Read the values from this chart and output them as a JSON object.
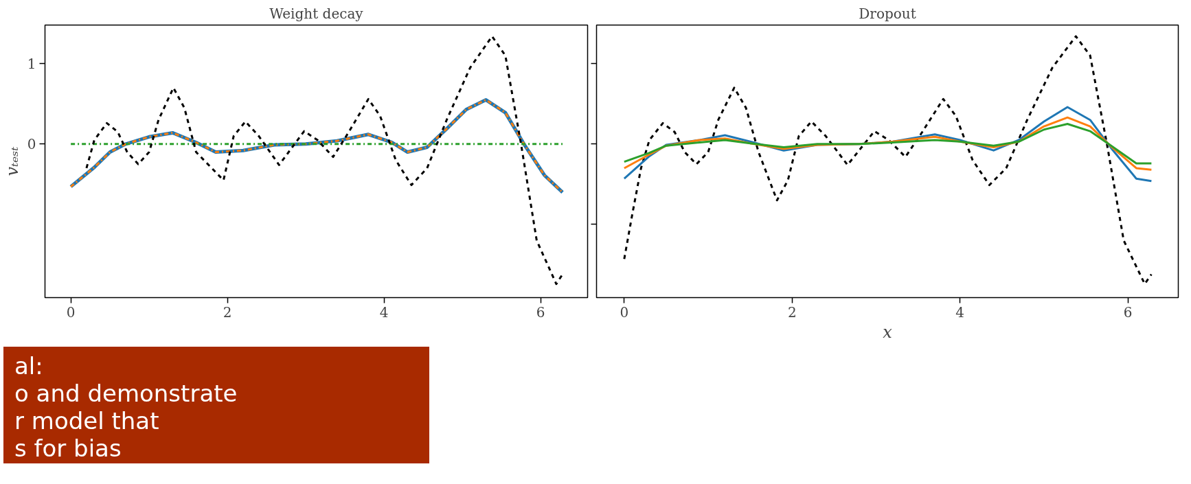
{
  "chart_data": [
    {
      "type": "line",
      "title": "Weight decay",
      "ylabel": "vₜₑₛₜ",
      "xlim": [
        -0.33,
        6.6
      ],
      "ylim": [
        -1.91,
        1.48
      ],
      "xticks": [
        0,
        2,
        4,
        6
      ],
      "yticks": [
        0,
        1
      ],
      "grid": false,
      "series": [
        {
          "color": "#1f77b4",
          "line_style": "solid",
          "x": [
            0,
            0.3,
            0.5,
            0.7,
            1.0,
            1.3,
            1.6,
            1.85,
            2.2,
            2.6,
            3.0,
            3.4,
            3.8,
            4.1,
            4.3,
            4.55,
            4.8,
            5.05,
            5.3,
            5.55,
            5.8,
            6.05,
            6.28
          ],
          "values": [
            -0.53,
            -0.29,
            -0.1,
            0,
            0.09,
            0.14,
            0.02,
            -0.1,
            -0.08,
            -0.01,
            0,
            0.04,
            0.12,
            0.02,
            -0.1,
            -0.04,
            0.19,
            0.43,
            0.55,
            0.39,
            -0.02,
            -0.39,
            -0.6
          ]
        },
        {
          "color": "#ff7f0e",
          "line_style": "dashdot",
          "x": [
            0,
            0.3,
            0.5,
            0.7,
            1.0,
            1.3,
            1.6,
            1.85,
            2.2,
            2.6,
            3.0,
            3.4,
            3.8,
            4.1,
            4.3,
            4.55,
            4.8,
            5.05,
            5.3,
            5.55,
            5.8,
            6.05,
            6.28
          ],
          "values": [
            -0.53,
            -0.29,
            -0.1,
            0,
            0.09,
            0.14,
            0.02,
            -0.1,
            -0.08,
            -0.01,
            0,
            0.04,
            0.12,
            0.02,
            -0.1,
            -0.04,
            0.19,
            0.43,
            0.55,
            0.39,
            -0.02,
            -0.39,
            -0.6
          ]
        },
        {
          "color": "#2ca02c",
          "line_style": "dashdot",
          "x": [
            0,
            6.28
          ],
          "values": [
            0,
            0
          ]
        },
        {
          "color": "#000000",
          "line_style": "dashed",
          "x": [
            0.2,
            0.3,
            0.46,
            0.6,
            0.72,
            0.86,
            1.0,
            1.12,
            1.31,
            1.45,
            1.6,
            1.95,
            2.08,
            2.23,
            2.4,
            2.66,
            2.82,
            2.98,
            3.15,
            3.35,
            3.55,
            3.8,
            3.95,
            4.15,
            4.35,
            4.55,
            4.8,
            5.1,
            5.38,
            5.55,
            5.75,
            5.95,
            6.2,
            6.28
          ],
          "values": [
            -0.3,
            0.05,
            0.26,
            0.15,
            -0.1,
            -0.25,
            -0.1,
            0.3,
            0.7,
            0.45,
            -0.1,
            -0.45,
            0.1,
            0.28,
            0.1,
            -0.26,
            -0.05,
            0.16,
            0.05,
            -0.16,
            0.15,
            0.56,
            0.35,
            -0.2,
            -0.51,
            -0.3,
            0.3,
            0.95,
            1.34,
            1.1,
            0.0,
            -1.2,
            -1.74,
            -1.62
          ]
        }
      ]
    },
    {
      "type": "line",
      "title": "Dropout",
      "xlabel": "x",
      "xlim": [
        -0.33,
        6.6
      ],
      "ylim": [
        -1.91,
        1.48
      ],
      "xticks": [
        0,
        2,
        4,
        6
      ],
      "yticks": [
        -1,
        0,
        1
      ],
      "tick_labels": "x",
      "grid": false,
      "series": [
        {
          "color": "#000000",
          "line_style": "dashed",
          "x": [
            0,
            0.1,
            0.2,
            0.3,
            0.46,
            0.6,
            0.72,
            0.86,
            1.0,
            1.12,
            1.31,
            1.45,
            1.6,
            1.82,
            1.95,
            2.08,
            2.23,
            2.4,
            2.66,
            2.82,
            2.98,
            3.15,
            3.35,
            3.55,
            3.8,
            3.95,
            4.15,
            4.35,
            4.55,
            4.8,
            5.1,
            5.38,
            5.55,
            5.75,
            5.95,
            6.2,
            6.28
          ],
          "values": [
            -1.43,
            -0.85,
            -0.3,
            0.05,
            0.26,
            0.15,
            -0.1,
            -0.25,
            -0.1,
            0.3,
            0.7,
            0.45,
            -0.1,
            -0.7,
            -0.45,
            0.1,
            0.28,
            0.1,
            -0.26,
            -0.05,
            0.16,
            0.05,
            -0.16,
            0.15,
            0.56,
            0.35,
            -0.2,
            -0.51,
            -0.3,
            0.3,
            0.95,
            1.34,
            1.1,
            0.0,
            -1.2,
            -1.74,
            -1.62
          ]
        },
        {
          "color": "#1f77b4",
          "line_style": "solid",
          "x": [
            0,
            0.3,
            0.5,
            0.9,
            1.2,
            1.5,
            1.9,
            2.3,
            2.8,
            3.2,
            3.7,
            4.0,
            4.4,
            4.7,
            5.0,
            5.28,
            5.55,
            5.8,
            6.1,
            6.28
          ],
          "values": [
            -0.43,
            -0.15,
            -0.01,
            0.05,
            0.11,
            0.03,
            -0.08,
            -0.01,
            0,
            0.03,
            0.12,
            0.05,
            -0.08,
            0.05,
            0.28,
            0.46,
            0.3,
            -0.05,
            -0.43,
            -0.46
          ]
        },
        {
          "color": "#ff7f0e",
          "line_style": "solid",
          "x": [
            0,
            0.3,
            0.5,
            0.9,
            1.2,
            1.5,
            1.9,
            2.3,
            2.8,
            3.2,
            3.7,
            4.0,
            4.4,
            4.7,
            5.0,
            5.28,
            5.55,
            5.8,
            6.1,
            6.28
          ],
          "values": [
            -0.3,
            -0.13,
            -0.02,
            0.05,
            0.07,
            0.01,
            -0.06,
            -0.01,
            0,
            0.03,
            0.09,
            0.03,
            -0.04,
            0.03,
            0.22,
            0.33,
            0.22,
            -0.03,
            -0.3,
            -0.32
          ]
        },
        {
          "color": "#2ca02c",
          "line_style": "solid",
          "x": [
            0,
            0.3,
            0.5,
            0.9,
            1.2,
            1.5,
            1.9,
            2.3,
            2.8,
            3.2,
            3.7,
            4.0,
            4.4,
            4.7,
            5.0,
            5.28,
            5.55,
            5.8,
            6.1,
            6.28
          ],
          "values": [
            -0.22,
            -0.11,
            -0.02,
            0.02,
            0.05,
            0.01,
            -0.04,
            0,
            0,
            0.02,
            0.05,
            0.03,
            -0.02,
            0.03,
            0.18,
            0.25,
            0.16,
            -0.02,
            -0.24,
            -0.24
          ]
        }
      ]
    },
    {
      "type": "other",
      "annotations": [
        "al:",
        "o and demonstrate",
        "r model that",
        "s for bias"
      ]
    }
  ]
}
